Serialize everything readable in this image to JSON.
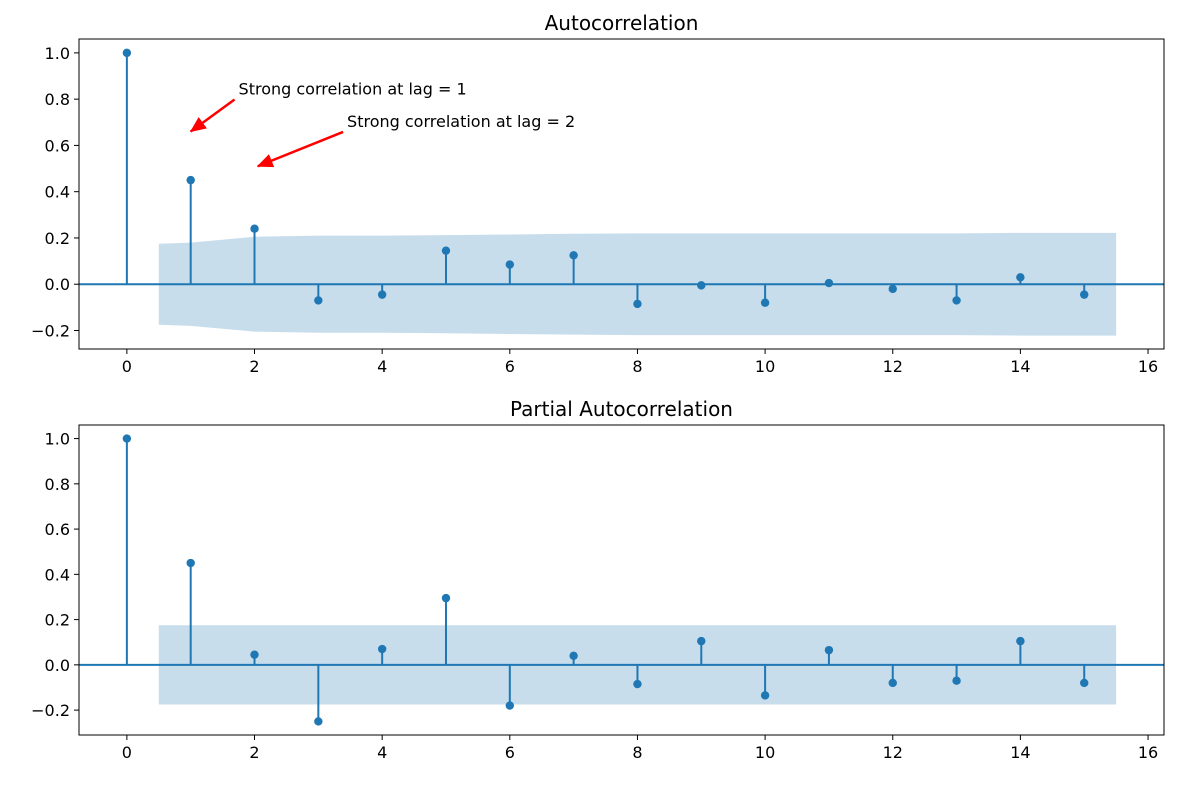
{
  "colors": {
    "stem": "#1f77b4",
    "band": "#1f77b4",
    "axes": "#000000",
    "arrow": "#ff0000",
    "background": "#ffffff"
  },
  "chart_data": [
    {
      "type": "stem",
      "title": "Autocorrelation",
      "xlabel": "",
      "ylabel": "",
      "xlim": [
        -0.75,
        16.25
      ],
      "ylim": [
        -0.28,
        1.06
      ],
      "xticks": [
        0,
        2,
        4,
        6,
        8,
        10,
        12,
        14,
        16
      ],
      "yticks": [
        -0.2,
        0.0,
        0.2,
        0.4,
        0.6,
        0.8,
        1.0
      ],
      "ytick_labels": [
        "−0.2",
        "0.0",
        "0.2",
        "0.4",
        "0.6",
        "0.8",
        "1.0"
      ],
      "grid": false,
      "lags": [
        0,
        1,
        2,
        3,
        4,
        5,
        6,
        7,
        8,
        9,
        10,
        11,
        12,
        13,
        14,
        15
      ],
      "values": [
        1.0,
        0.45,
        0.24,
        -0.07,
        -0.045,
        0.145,
        0.085,
        0.125,
        -0.085,
        -0.005,
        -0.08,
        0.005,
        -0.02,
        -0.07,
        0.03,
        -0.045
      ],
      "confidence_band": {
        "x": [
          0.5,
          1.0,
          2.0,
          3.0,
          4.0,
          5.0,
          6.0,
          7.0,
          8.0,
          9.0,
          10.0,
          11.0,
          12.0,
          13.0,
          14.0,
          15.5
        ],
        "upper": [
          0.175,
          0.18,
          0.205,
          0.21,
          0.21,
          0.212,
          0.215,
          0.218,
          0.22,
          0.22,
          0.22,
          0.22,
          0.22,
          0.22,
          0.222,
          0.222
        ],
        "lower": [
          -0.175,
          -0.18,
          -0.205,
          -0.21,
          -0.21,
          -0.212,
          -0.215,
          -0.218,
          -0.22,
          -0.22,
          -0.22,
          -0.22,
          -0.22,
          -0.22,
          -0.222,
          -0.222
        ]
      },
      "annotations": [
        {
          "text": "Strong correlation at lag = 1",
          "text_x": 1.75,
          "text_y": 0.82,
          "tip_x": 1.0,
          "tip_y": 0.66
        },
        {
          "text": "Strong correlation at lag = 2",
          "text_x": 3.45,
          "text_y": 0.68,
          "tip_x": 2.05,
          "tip_y": 0.51
        }
      ]
    },
    {
      "type": "stem",
      "title": "Partial Autocorrelation",
      "xlabel": "",
      "ylabel": "",
      "xlim": [
        -0.75,
        16.25
      ],
      "ylim": [
        -0.31,
        1.06
      ],
      "xticks": [
        0,
        2,
        4,
        6,
        8,
        10,
        12,
        14,
        16
      ],
      "yticks": [
        -0.2,
        0.0,
        0.2,
        0.4,
        0.6,
        0.8,
        1.0
      ],
      "ytick_labels": [
        "−0.2",
        "0.0",
        "0.2",
        "0.4",
        "0.6",
        "0.8",
        "1.0"
      ],
      "grid": false,
      "lags": [
        0,
        1,
        2,
        3,
        4,
        5,
        6,
        7,
        8,
        9,
        10,
        11,
        12,
        13,
        14,
        15
      ],
      "values": [
        1.0,
        0.45,
        0.045,
        -0.25,
        0.07,
        0.295,
        -0.18,
        0.04,
        -0.085,
        0.105,
        -0.135,
        0.065,
        -0.08,
        -0.07,
        0.105,
        -0.08
      ],
      "confidence_band": {
        "x": [
          0.5,
          15.5
        ],
        "upper": [
          0.175,
          0.175
        ],
        "lower": [
          -0.175,
          -0.175
        ]
      },
      "annotations": []
    }
  ]
}
